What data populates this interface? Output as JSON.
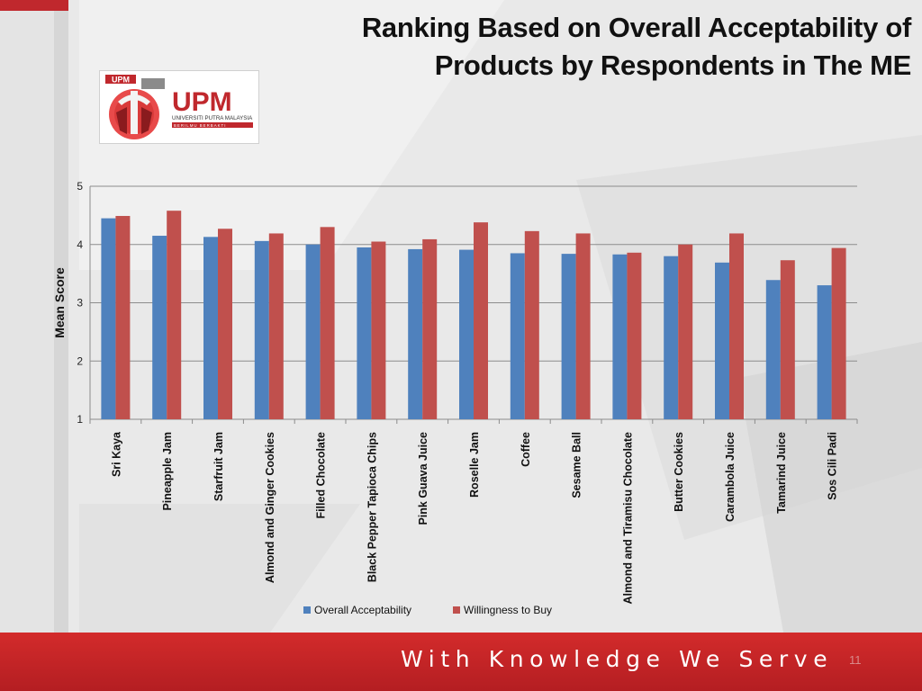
{
  "slide": {
    "title_line1": "Ranking Based on Overall Acceptability of",
    "title_line2": "Products by Respondents in The ME",
    "logo_text": "UPM",
    "logo_small_text": "UPM",
    "logo_subtitle": "UNIVERSITI PUTRA MALAYSIA",
    "logo_tagline": "BERILMU BERBAKTI",
    "footer_motto": "With Knowledge We Serve",
    "slide_number": "11"
  },
  "colors": {
    "series1": "#4f81bd",
    "series2": "#c0504d",
    "brand_red": "#c0282d",
    "footer_red": "#c8262b"
  },
  "chart_data": {
    "type": "bar",
    "title": "",
    "xlabel": "",
    "ylabel": "Mean Score",
    "ylim": [
      1,
      5
    ],
    "yticks": [
      1,
      2,
      3,
      4,
      5
    ],
    "grid": true,
    "legend_position": "bottom",
    "categories": [
      "Sri Kaya",
      "Pineapple Jam",
      "Starfruit Jam",
      "Almond and Ginger Cookies",
      "Filled Chocolate",
      "Black Pepper Tapioca Chips",
      "Pink Guava Juice",
      "Roselle Jam",
      "Coffee",
      "Sesame Ball",
      "Almond and Tiramisu Chocolate",
      "Butter Cookies",
      "Carambola Juice",
      "Tamarind Juice",
      "Sos Cili Padi"
    ],
    "series": [
      {
        "name": "Overall Acceptability",
        "values": [
          4.45,
          4.15,
          4.13,
          4.06,
          4.0,
          3.95,
          3.92,
          3.91,
          3.85,
          3.84,
          3.83,
          3.8,
          3.69,
          3.39,
          3.3
        ]
      },
      {
        "name": "Willingness to Buy",
        "values": [
          4.49,
          4.58,
          4.27,
          4.19,
          4.3,
          4.05,
          4.09,
          4.38,
          4.23,
          4.19,
          3.86,
          4.0,
          4.19,
          3.73,
          3.94
        ]
      }
    ]
  }
}
